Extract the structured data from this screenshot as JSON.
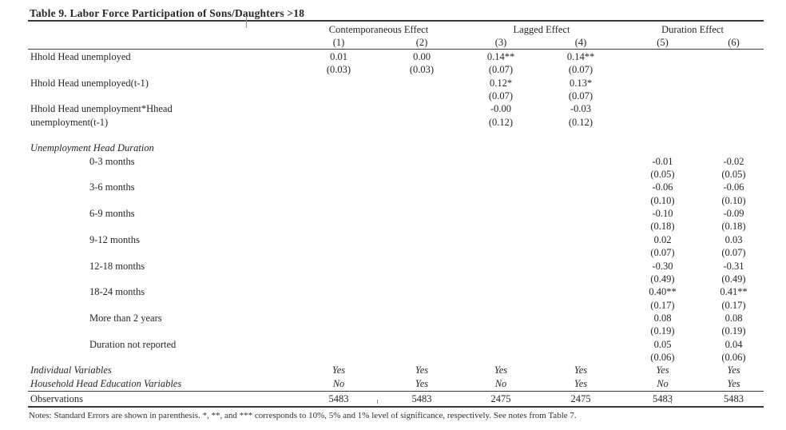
{
  "title": "Table 9. Labor Force Participation of Sons/Daughters >18",
  "table": {
    "groups": [
      {
        "label": "Contemporaneous Effect"
      },
      {
        "label": "Lagged Effect"
      },
      {
        "label": "Duration Effect"
      }
    ],
    "column_numbers": [
      "(1)",
      "(2)",
      "(3)",
      "(4)",
      "(5)",
      "(6)"
    ],
    "rows": [
      {
        "kind": "plain",
        "label": "Hhold Head unemployed",
        "cells": [
          "0.01",
          "0.00",
          "0.14**",
          "0.14**",
          "",
          ""
        ]
      },
      {
        "kind": "plain",
        "label": "",
        "cells": [
          "(0.03)",
          "(0.03)",
          "(0.07)",
          "(0.07)",
          "",
          ""
        ]
      },
      {
        "kind": "plain",
        "label": "Hhold Head unemployed(t-1)",
        "cells": [
          "",
          "",
          "0.12*",
          "0.13*",
          "",
          ""
        ]
      },
      {
        "kind": "plain",
        "label": "",
        "cells": [
          "",
          "",
          "(0.07)",
          "(0.07)",
          "",
          ""
        ]
      },
      {
        "kind": "plain",
        "label": "Hhold Head unemployment*Hhead",
        "cells": [
          "",
          "",
          "-0.00",
          "-0.03",
          "",
          ""
        ]
      },
      {
        "kind": "plain",
        "label": "unemployment(t-1)",
        "cells": [
          "",
          "",
          "(0.12)",
          "(0.12)",
          "",
          ""
        ]
      },
      {
        "kind": "spacer",
        "label": "",
        "cells": [
          "",
          "",
          "",
          "",
          "",
          ""
        ]
      },
      {
        "kind": "section",
        "label": "Unemployment Head Duration",
        "cells": [
          "",
          "",
          "",
          "",
          "",
          ""
        ]
      },
      {
        "kind": "indent",
        "label": "0-3 months",
        "cells": [
          "",
          "",
          "",
          "",
          "-0.01",
          "-0.02"
        ]
      },
      {
        "kind": "plain",
        "label": "",
        "cells": [
          "",
          "",
          "",
          "",
          "(0.05)",
          "(0.05)"
        ]
      },
      {
        "kind": "indent",
        "label": "3-6 months",
        "cells": [
          "",
          "",
          "",
          "",
          "-0.06",
          "-0.06"
        ]
      },
      {
        "kind": "plain",
        "label": "",
        "cells": [
          "",
          "",
          "",
          "",
          "(0.10)",
          "(0.10)"
        ]
      },
      {
        "kind": "indent",
        "label": "6-9 months",
        "cells": [
          "",
          "",
          "",
          "",
          "-0.10",
          "-0.09"
        ]
      },
      {
        "kind": "plain",
        "label": "",
        "cells": [
          "",
          "",
          "",
          "",
          "(0.18)",
          "(0.18)"
        ]
      },
      {
        "kind": "indent",
        "label": "9-12 months",
        "cells": [
          "",
          "",
          "",
          "",
          "0.02",
          "0.03"
        ]
      },
      {
        "kind": "plain",
        "label": "",
        "cells": [
          "",
          "",
          "",
          "",
          "(0.07)",
          "(0.07)"
        ]
      },
      {
        "kind": "indent",
        "label": "12-18 months",
        "cells": [
          "",
          "",
          "",
          "",
          "-0.30",
          "-0.31"
        ]
      },
      {
        "kind": "plain",
        "label": "",
        "cells": [
          "",
          "",
          "",
          "",
          "(0.49)",
          "(0.49)"
        ]
      },
      {
        "kind": "indent",
        "label": "18-24 months",
        "cells": [
          "",
          "",
          "",
          "",
          "0.40**",
          "0.41**"
        ]
      },
      {
        "kind": "plain",
        "label": "",
        "cells": [
          "",
          "",
          "",
          "",
          "(0.17)",
          "(0.17)"
        ]
      },
      {
        "kind": "indent",
        "label": "More than 2 years",
        "cells": [
          "",
          "",
          "",
          "",
          "0.08",
          "0.08"
        ]
      },
      {
        "kind": "plain",
        "label": "",
        "cells": [
          "",
          "",
          "",
          "",
          "(0.19)",
          "(0.19)"
        ]
      },
      {
        "kind": "indent",
        "label": "Duration not reported",
        "cells": [
          "",
          "",
          "",
          "",
          "0.05",
          "0.04"
        ]
      },
      {
        "kind": "plain",
        "label": "",
        "cells": [
          "",
          "",
          "",
          "",
          "(0.06)",
          "(0.06)"
        ]
      },
      {
        "kind": "flags",
        "label": "Individual Variables",
        "cells": [
          "Yes",
          "Yes",
          "Yes",
          "Yes",
          "Yes",
          "Yes"
        ]
      },
      {
        "kind": "flags",
        "label": "Household Head Education Variables",
        "cells": [
          "No",
          "Yes",
          "No",
          "Yes",
          "No",
          "Yes"
        ]
      }
    ],
    "footer": {
      "label": "Observations",
      "cells": [
        "5483",
        "5483",
        "2475",
        "2475",
        "5483",
        "5483"
      ]
    }
  },
  "notes": "Notes: Standard Errors are shown in parenthesis. *, **, and *** corresponds to 10%, 5% and 1% level of significance, respectively. See notes from Table 7."
}
